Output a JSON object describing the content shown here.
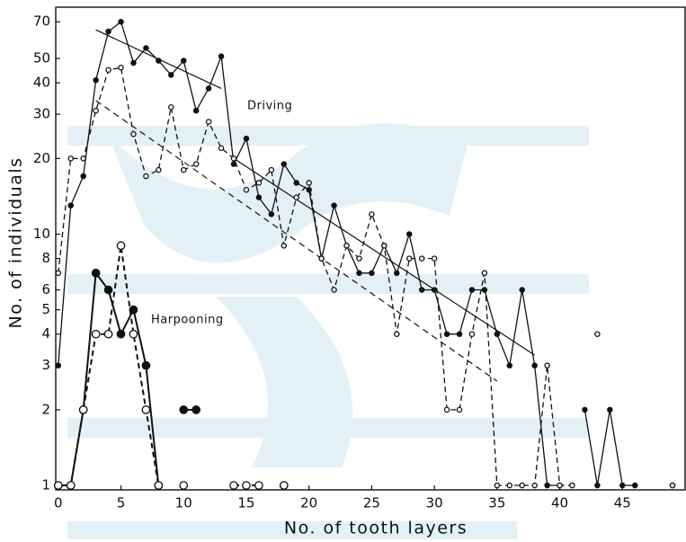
{
  "chart_data": {
    "type": "line",
    "x_label": "No. of tooth layers",
    "y_label": "No. of individuals",
    "log_y": true,
    "grid": false,
    "color": "#111111",
    "xlim": [
      -0.2,
      50
    ],
    "ylim": [
      0.96,
      80
    ],
    "xticks": [
      0,
      5,
      10,
      15,
      20,
      25,
      30,
      35,
      40,
      45
    ],
    "yticks": [
      1,
      2,
      3,
      4,
      5,
      6,
      8,
      10,
      20,
      30,
      40,
      50,
      70
    ],
    "annotations": [
      "Driving",
      "Harpooning"
    ],
    "series": [
      {
        "marker": "filled",
        "dashed": false,
        "marker_size": 2.6,
        "x": [
          0,
          1,
          2,
          3,
          4,
          5,
          6,
          7,
          8,
          9,
          10,
          11,
          12,
          13,
          14,
          15,
          16,
          17,
          18,
          19,
          20,
          21,
          22,
          23,
          24,
          25,
          26,
          27,
          28,
          29,
          30,
          31,
          32,
          33,
          34,
          35,
          36,
          37,
          38,
          39,
          40,
          41,
          42,
          43,
          44,
          45,
          46,
          47,
          48,
          49
        ],
        "values": [
          3,
          13,
          17,
          41,
          64,
          70,
          48,
          55,
          49,
          43,
          49,
          31,
          38,
          51,
          19,
          24,
          14,
          12,
          19,
          16,
          15,
          8,
          13,
          9,
          7,
          7,
          9,
          7,
          10,
          6,
          6,
          4,
          4,
          6,
          6,
          4,
          3,
          6,
          3,
          1,
          1,
          null,
          2,
          1,
          2,
          1,
          1,
          null,
          null,
          1
        ]
      },
      {
        "marker": "open",
        "dashed": true,
        "marker_size": 2.6,
        "x": [
          0,
          1,
          2,
          3,
          4,
          5,
          6,
          7,
          8,
          9,
          10,
          11,
          12,
          13,
          14,
          15,
          16,
          17,
          18,
          19,
          20,
          21,
          22,
          23,
          24,
          25,
          26,
          27,
          28,
          29,
          30,
          31,
          32,
          33,
          34,
          35,
          36,
          37,
          38,
          39,
          40,
          41,
          42,
          43,
          44,
          45,
          46,
          47,
          48,
          49
        ],
        "values": [
          7,
          20,
          20,
          31,
          45,
          46,
          25,
          17,
          18,
          32,
          18,
          19,
          28,
          22,
          20,
          15,
          16,
          18,
          9,
          14,
          16,
          8,
          6,
          9,
          8,
          12,
          9,
          4,
          8,
          8,
          8,
          2,
          2,
          4,
          7,
          1,
          1,
          1,
          1,
          3,
          1,
          1,
          null,
          4,
          null,
          null,
          null,
          null,
          null,
          1
        ]
      },
      {
        "marker": "filled",
        "dashed": false,
        "marker_size": 4.2,
        "x": [
          0,
          1,
          2,
          3,
          4,
          5,
          6,
          7,
          8,
          9,
          10,
          11,
          12,
          13,
          14,
          15,
          16,
          17,
          18
        ],
        "values": [
          1,
          1,
          2,
          7,
          6,
          4,
          5,
          3,
          1,
          null,
          2,
          2,
          null,
          null,
          null,
          null,
          null,
          null,
          1
        ]
      },
      {
        "marker": "open",
        "dashed": true,
        "marker_size": 4.2,
        "x": [
          0,
          1,
          2,
          3,
          4,
          5,
          6,
          7,
          8,
          9,
          10,
          11,
          12,
          13,
          14,
          15,
          16,
          17,
          18
        ],
        "values": [
          1,
          1,
          2,
          4,
          4,
          9,
          4,
          2,
          1,
          null,
          1,
          null,
          null,
          null,
          1,
          1,
          1,
          null,
          1
        ]
      }
    ],
    "fit_lines": [
      {
        "dashed": false,
        "x": [
          3,
          13
        ],
        "values": [
          65,
          38
        ]
      },
      {
        "dashed": false,
        "x": [
          14,
          38
        ],
        "values": [
          20,
          3.3
        ]
      },
      {
        "dashed": true,
        "x": [
          3,
          35
        ],
        "values": [
          34,
          2.6
        ]
      }
    ]
  }
}
